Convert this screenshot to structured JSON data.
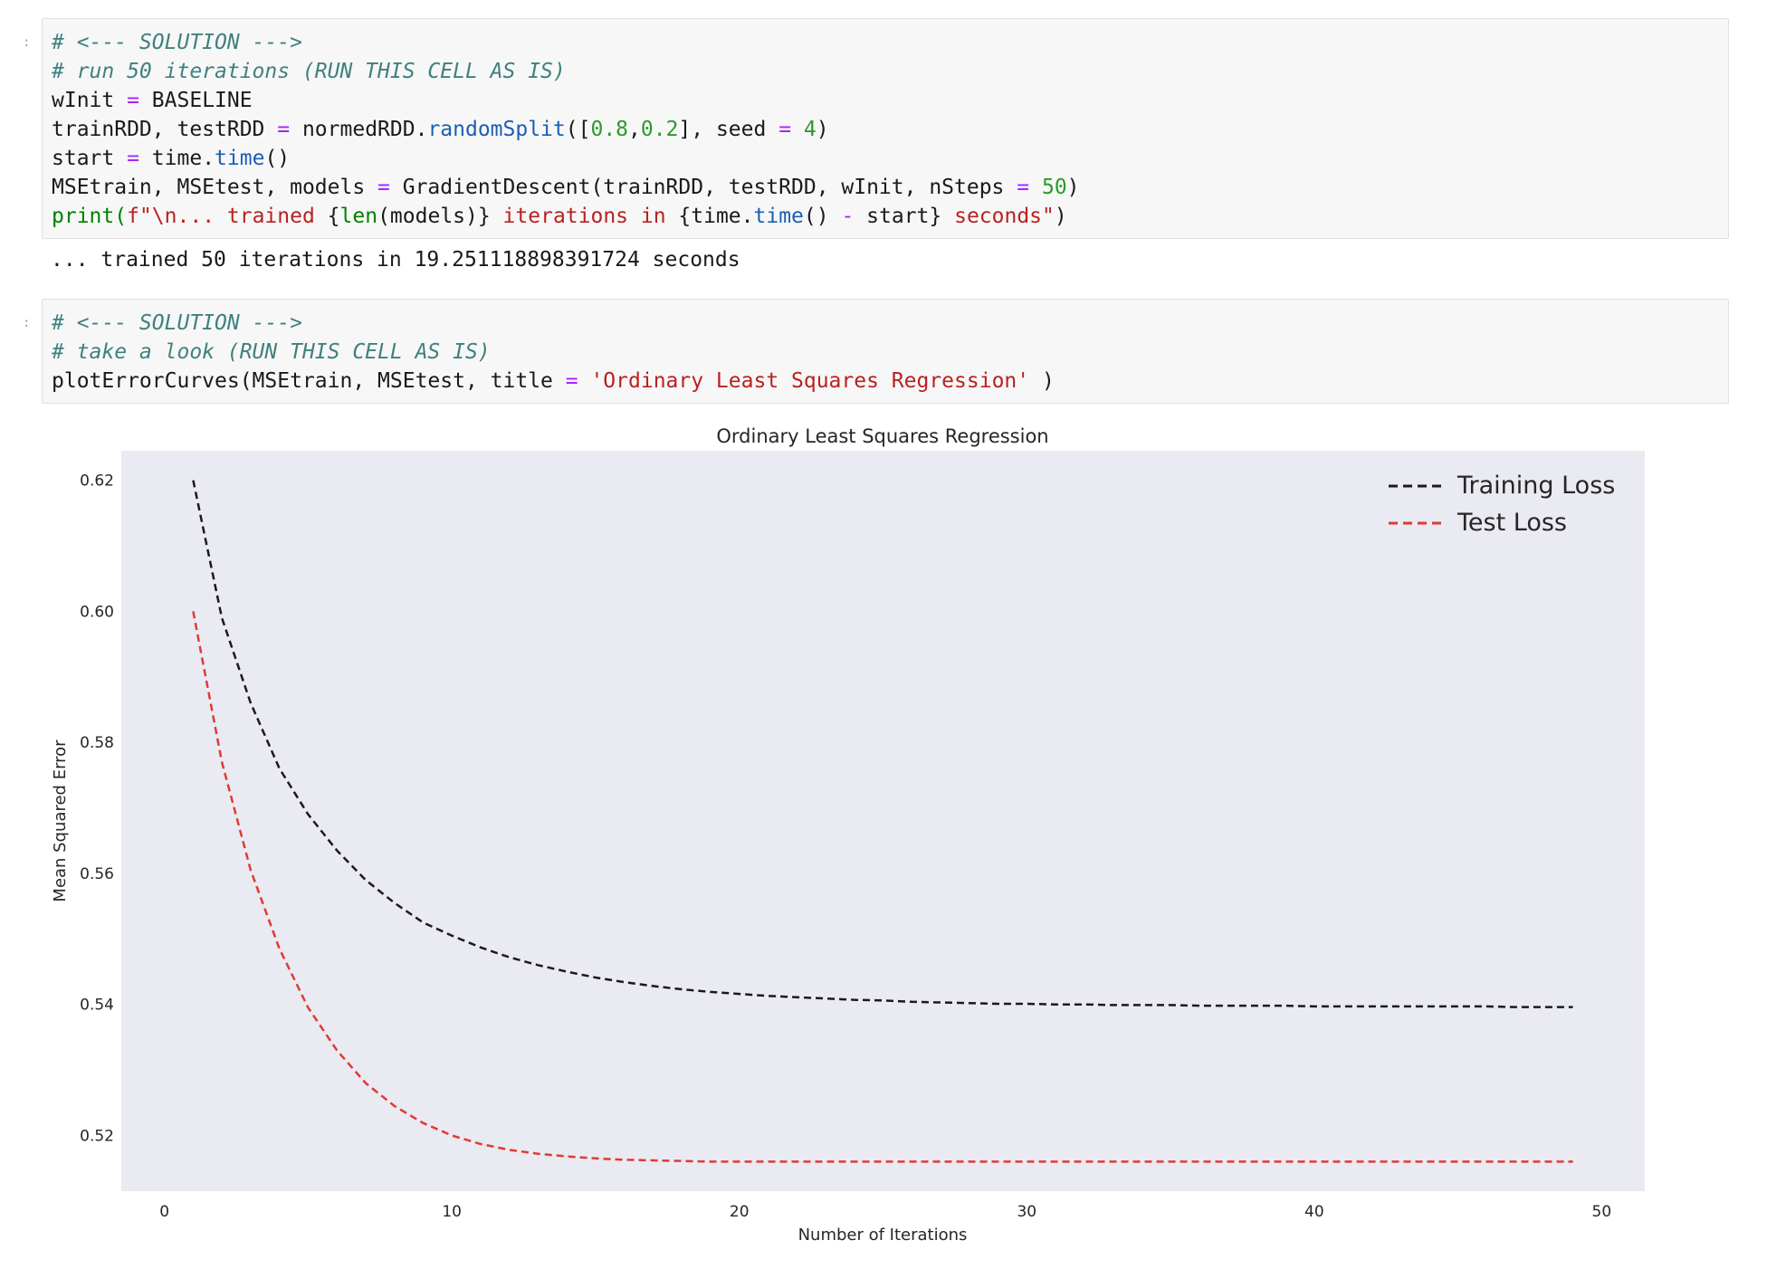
{
  "cell1": {
    "prompt": ":",
    "lines": [
      [
        {
          "t": "# <--- SOLUTION --->",
          "c": "cm"
        }
      ],
      [
        {
          "t": "# run 50 iterations (RUN THIS CELL AS IS)",
          "c": "cm"
        }
      ],
      [
        {
          "t": "wInit "
        },
        {
          "t": "=",
          "c": "op"
        },
        {
          "t": " BASELINE"
        }
      ],
      [
        {
          "t": "trainRDD, testRDD "
        },
        {
          "t": "=",
          "c": "op"
        },
        {
          "t": " normedRDD."
        },
        {
          "t": "randomSplit",
          "c": "fn"
        },
        {
          "t": "(["
        },
        {
          "t": "0.8",
          "c": "num"
        },
        {
          "t": ","
        },
        {
          "t": "0.2",
          "c": "num"
        },
        {
          "t": "], seed "
        },
        {
          "t": "=",
          "c": "op"
        },
        {
          "t": " "
        },
        {
          "t": "4",
          "c": "num"
        },
        {
          "t": ")"
        }
      ],
      [
        {
          "t": "start "
        },
        {
          "t": "=",
          "c": "op"
        },
        {
          "t": " time."
        },
        {
          "t": "time",
          "c": "fn"
        },
        {
          "t": "()"
        }
      ],
      [
        {
          "t": "MSEtrain, MSEtest, models "
        },
        {
          "t": "=",
          "c": "op"
        },
        {
          "t": " GradientDescent(trainRDD, testRDD, wInit, nSteps "
        },
        {
          "t": "=",
          "c": "op"
        },
        {
          "t": " "
        },
        {
          "t": "50",
          "c": "num"
        },
        {
          "t": ")"
        }
      ],
      [
        {
          "t": "print",
          "c": "bi"
        },
        {
          "t": "(",
          "c": "bi"
        },
        {
          "t": "f\"\\n... trained ",
          "c": "str"
        },
        {
          "t": "{"
        },
        {
          "t": "len",
          "c": "bi"
        },
        {
          "t": "(models)}"
        },
        {
          "t": " iterations in ",
          "c": "str"
        },
        {
          "t": "{time."
        },
        {
          "t": "time",
          "c": "fn"
        },
        {
          "t": "() "
        },
        {
          "t": "-",
          "c": "op"
        },
        {
          "t": " start}"
        },
        {
          "t": " seconds\"",
          "c": "str"
        },
        {
          "t": ")"
        }
      ]
    ]
  },
  "output1": "... trained 50 iterations in 19.251118898391724 seconds",
  "cell2": {
    "prompt": ":",
    "lines": [
      [
        {
          "t": "# <--- SOLUTION --->",
          "c": "cm"
        }
      ],
      [
        {
          "t": "# take a look (RUN THIS CELL AS IS)",
          "c": "cm"
        }
      ],
      [
        {
          "t": "plotErrorCurves(MSEtrain, MSEtest, title "
        },
        {
          "t": "=",
          "c": "op"
        },
        {
          "t": " "
        },
        {
          "t": "'Ordinary Least Squares Regression'",
          "c": "str"
        },
        {
          "t": " )"
        }
      ]
    ]
  },
  "chart_data": {
    "type": "line",
    "title": "Ordinary Least Squares Regression",
    "xlabel": "Number of Iterations",
    "ylabel": "Mean Squared Error",
    "xlim": [
      -1.5,
      51.5
    ],
    "ylim": [
      0.5115,
      0.6245
    ],
    "xticks": [
      0,
      10,
      20,
      30,
      40,
      50
    ],
    "yticks": [
      0.52,
      0.54,
      0.56,
      0.58,
      0.6,
      0.62
    ],
    "ytick_labels": [
      "0.52",
      "0.54",
      "0.56",
      "0.58",
      "0.60",
      "0.62"
    ],
    "grid": false,
    "legend": "top-right",
    "background": "#eaeaf2",
    "x": [
      1,
      2,
      3,
      4,
      5,
      6,
      7,
      8,
      9,
      10,
      11,
      12,
      13,
      14,
      15,
      16,
      17,
      18,
      19,
      20,
      21,
      22,
      23,
      24,
      25,
      26,
      27,
      28,
      29,
      30,
      31,
      32,
      33,
      34,
      35,
      36,
      37,
      38,
      39,
      40,
      41,
      42,
      43,
      44,
      45,
      46,
      47,
      48,
      49
    ],
    "series": [
      {
        "name": "Training Loss",
        "color": "#1a1a1a",
        "dash": "dashed",
        "values": [
          0.62,
          0.599,
          0.586,
          0.576,
          0.569,
          0.5635,
          0.559,
          0.5555,
          0.5525,
          0.5505,
          0.5487,
          0.5472,
          0.546,
          0.545,
          0.5441,
          0.5434,
          0.5428,
          0.5423,
          0.5419,
          0.5416,
          0.5413,
          0.5411,
          0.5409,
          0.5407,
          0.5406,
          0.5404,
          0.5403,
          0.5402,
          0.5401,
          0.5401,
          0.54,
          0.54,
          0.5399,
          0.5399,
          0.5399,
          0.5398,
          0.5398,
          0.5398,
          0.5398,
          0.5397,
          0.5397,
          0.5397,
          0.5397,
          0.5397,
          0.5397,
          0.5397,
          0.5396,
          0.5396,
          0.5396
        ]
      },
      {
        "name": "Test Loss",
        "color": "#e03a32",
        "dash": "dashed",
        "values": [
          0.6,
          0.577,
          0.5605,
          0.5485,
          0.5395,
          0.533,
          0.528,
          0.5245,
          0.5219,
          0.52,
          0.5187,
          0.5178,
          0.5172,
          0.5168,
          0.5165,
          0.5163,
          0.5162,
          0.5161,
          0.516,
          0.516,
          0.516,
          0.516,
          0.516,
          0.516,
          0.516,
          0.516,
          0.516,
          0.516,
          0.516,
          0.516,
          0.516,
          0.516,
          0.516,
          0.516,
          0.516,
          0.516,
          0.516,
          0.516,
          0.516,
          0.516,
          0.516,
          0.516,
          0.516,
          0.516,
          0.516,
          0.516,
          0.516,
          0.516,
          0.516
        ]
      }
    ]
  }
}
